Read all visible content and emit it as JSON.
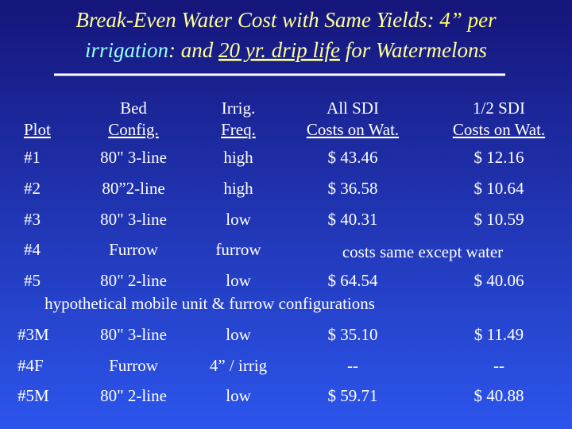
{
  "title": {
    "segments": [
      "Break-Even Water Cost with Same Yields",
      ": ",
      "4” per",
      "irrigation",
      ": and ",
      "20 yr. drip life",
      " for Watermelons"
    ]
  },
  "table": {
    "header": [
      [
        "Plot"
      ],
      [
        "Bed",
        "Config."
      ],
      [
        "Irrig.",
        "Freq."
      ],
      [
        "All SDI",
        "Costs on Wat."
      ],
      [
        "1/2 SDI",
        "Costs on Wat."
      ]
    ],
    "rows": [
      [
        "#1",
        "80\" 3-line",
        "high",
        "$ 43.46",
        "$ 12.16"
      ],
      [
        "#2",
        "80”2-line",
        "high",
        "$ 36.58",
        "$ 10.64"
      ],
      [
        "#3",
        "80\" 3-line",
        "low",
        "$ 40.31",
        "$ 10.59"
      ],
      [
        "#4",
        "Furrow",
        "furrow"
      ],
      [
        "#5",
        "80\" 2-line",
        "low",
        "$ 64.54",
        "$ 40.06"
      ],
      [
        "#3M",
        "80\" 3-line",
        "low",
        "$ 35.10",
        "$ 11.49"
      ],
      [
        "#4F",
        "Furrow",
        "4” / irrig",
        "--",
        "--"
      ],
      [
        "#5M",
        "80\" 2-line",
        "low",
        "$ 59.71",
        "$ 40.88"
      ]
    ],
    "notes": [
      "costs same except water",
      "hypothetical mobile unit & furrow configurations"
    ]
  }
}
